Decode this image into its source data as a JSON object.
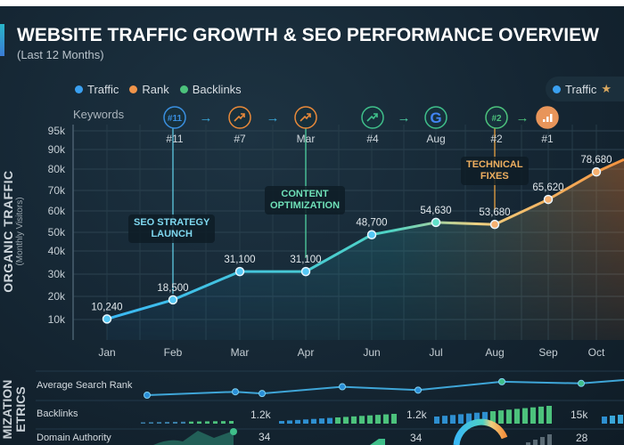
{
  "header": {
    "title": "WEBSITE TRAFFIC GROWTH & SEO PERFORMANCE OVERVIEW",
    "subtitle": "(Last 12 Months)"
  },
  "legend": [
    {
      "label": "Traffic",
      "color": "#3aa0f0"
    },
    {
      "label": "Rank",
      "color": "#f0944a"
    },
    {
      "label": "Backlinks",
      "color": "#4cc27c"
    }
  ],
  "legend_right": {
    "label": "Traffic",
    "color": "#3aa0f0",
    "icon": "star-icon"
  },
  "keywords": {
    "label": "Keywords",
    "items": [
      {
        "icon": "#11",
        "caption": "#11",
        "color": "#3a8fe0",
        "kind": "text"
      },
      {
        "icon": "trend-up-icon",
        "caption": "#7",
        "color": "#e8893a",
        "kind": "trend"
      },
      {
        "icon": "trend-up-icon",
        "caption": "Mar",
        "color": "#e8893a",
        "kind": "trend"
      },
      {
        "icon": "trend-up-icon",
        "caption": "#4",
        "color": "#3fbf8a",
        "kind": "trend"
      },
      {
        "icon": "google-icon",
        "caption": "Aug",
        "color": "#3fbf8a",
        "kind": "google"
      },
      {
        "icon": "#2",
        "caption": "#2",
        "color": "#4cc27c",
        "kind": "text"
      },
      {
        "icon": "bar-chart-icon",
        "caption": "#1",
        "color": "#e8955a",
        "kind": "bars"
      }
    ]
  },
  "chart_data": {
    "type": "area",
    "title": "WEBSITE TRAFFIC GROWTH & SEO PERFORMANCE OVERVIEW",
    "subtitle": "(Last 12 Months)",
    "ylabel": "ORGANIC TRAFFIC",
    "ylabel_sub": "(Monthly Visitors)",
    "yticks": [
      "95k",
      "90k",
      "80k",
      "70k",
      "60k",
      "50k",
      "40k",
      "30k",
      "20k",
      "10k"
    ],
    "ytick_values": [
      95000,
      90000,
      80000,
      70000,
      60000,
      50000,
      40000,
      30000,
      20000,
      10000
    ],
    "categories": [
      "Jan",
      "Feb",
      "Mar",
      "Apr",
      "Jun",
      "Jul",
      "Aug",
      "Sep",
      "Oct"
    ],
    "values": [
      10240,
      18500,
      31100,
      31100,
      48700,
      54630,
      53680,
      65620,
      78680
    ],
    "labels": [
      "10,240",
      "18,500",
      "31,100",
      "31,100",
      "48,700",
      "54,630",
      "53,680",
      "65,620",
      "78,680"
    ],
    "grid": true,
    "colors": {
      "start": "#3ab8f5",
      "mid": "#4fd3c4",
      "end": "#f5923e"
    },
    "annotations": [
      {
        "text": [
          "SEO STRATEGY",
          "LAUNCH"
        ],
        "month": "Feb",
        "color": "#7fd8f0"
      },
      {
        "text": [
          "CONTENT",
          "OPTIMIZATION"
        ],
        "month": "Apr",
        "color": "#6fe0b8"
      },
      {
        "text": [
          "TECHNICAL",
          "FIXES"
        ],
        "month": "Aug",
        "color": "#f0b060"
      }
    ]
  },
  "metrics": {
    "section_label": [
      "MIZATION",
      "ETRICS"
    ],
    "rows": [
      {
        "label": "Average Search Rank"
      },
      {
        "label": "Backlinks",
        "values": [
          "1.2k",
          "1.2k",
          "15k"
        ]
      },
      {
        "label": "Domain Authority",
        "values": [
          "34",
          "34",
          "28"
        ]
      }
    ],
    "rank_trend": [
      1,
      3,
      2,
      6,
      4,
      9,
      8,
      10
    ]
  }
}
